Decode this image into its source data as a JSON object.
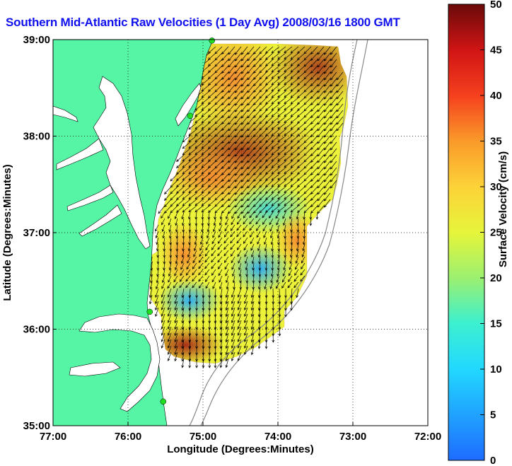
{
  "title": "Southern Mid-Atlantic Raw Velocities (1 Day Avg) 2008/03/16 1800 GMT",
  "colors": {
    "title": "#1010ee",
    "land": "#55f5a5",
    "station": "#22dd22",
    "arrow": "#000000",
    "bathymetry": "#888888"
  },
  "chart_data": {
    "type": "heatmap",
    "title": "Southern Mid-Atlantic Raw Velocities (1 Day Avg) 2008/03/16 1800 GMT",
    "xlabel": "Longitude (Degrees:Minutes)",
    "ylabel": "Latitude (Degrees:Minutes)",
    "xlim": [
      -77,
      -72
    ],
    "ylim": [
      35,
      39
    ],
    "x_ticks": [
      "77:00",
      "76:00",
      "75:00",
      "74:00",
      "73:00",
      "72:00"
    ],
    "y_ticks": [
      "35:00",
      "36:00",
      "37:00",
      "38:00",
      "39:00"
    ],
    "grid": true,
    "colorbar": {
      "label": "Surface Velocity (cm/s)",
      "min": 0,
      "max": 50,
      "ticks": [
        "0",
        "5",
        "10",
        "15",
        "20",
        "25",
        "30",
        "35",
        "40",
        "45",
        "50"
      ]
    },
    "stations": [
      {
        "lon": -74.88,
        "lat": 38.99
      },
      {
        "lon": -75.17,
        "lat": 38.21
      },
      {
        "lon": -75.71,
        "lat": 36.18
      },
      {
        "lon": -75.53,
        "lat": 35.25
      }
    ],
    "speed_regions": [
      {
        "lon": -74.6,
        "lat": 38.6,
        "speed": 33
      },
      {
        "lon": -73.5,
        "lat": 38.7,
        "speed": 38
      },
      {
        "lon": -74.2,
        "lat": 37.8,
        "speed": 40
      },
      {
        "lon": -74.8,
        "lat": 37.5,
        "speed": 33
      },
      {
        "lon": -73.6,
        "lat": 37.4,
        "speed": 25
      },
      {
        "lon": -74.5,
        "lat": 36.9,
        "speed": 14
      },
      {
        "lon": -74.0,
        "lat": 36.7,
        "speed": 10
      },
      {
        "lon": -75.3,
        "lat": 36.6,
        "speed": 33
      },
      {
        "lon": -74.9,
        "lat": 36.2,
        "speed": 14
      },
      {
        "lon": -75.2,
        "lat": 35.9,
        "speed": 45
      },
      {
        "lon": -73.4,
        "lat": 38.2,
        "speed": 25
      }
    ]
  }
}
